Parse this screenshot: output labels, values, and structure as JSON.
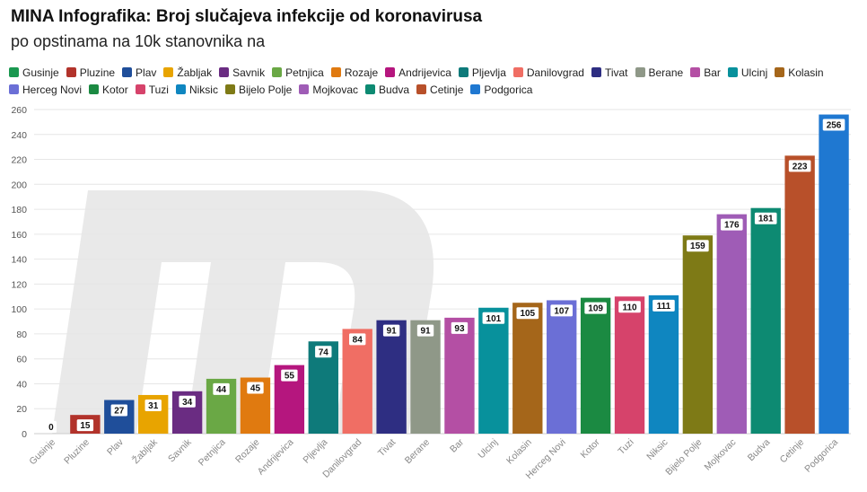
{
  "header": {
    "title": "MINA Infografika: Broj slučajeva infekcije od koronavirusa",
    "subtitle": "po opstinama na 10k stanovnika na"
  },
  "colors": {
    "grid": "#e6e6e6",
    "axis": "#cccccc",
    "watermark": "#e9e9e9"
  },
  "chart_data": {
    "type": "bar",
    "categories": [
      "Gusinje",
      "Pluzine",
      "Plav",
      "Žabljak",
      "Savnik",
      "Petnjica",
      "Rozaje",
      "Andrijevica",
      "Pljevlja",
      "Danilovgrad",
      "Tivat",
      "Berane",
      "Bar",
      "Ulcinj",
      "Kolasin",
      "Herceg Novi",
      "Kotor",
      "Tuzi",
      "Niksic",
      "Bijelo Polje",
      "Mojkovac",
      "Budva",
      "Cetinje",
      "Podgorica"
    ],
    "values": [
      0,
      15,
      27,
      31,
      34,
      44,
      45,
      55,
      74,
      84,
      91,
      91,
      93,
      101,
      105,
      107,
      109,
      110,
      111,
      159,
      176,
      181,
      223,
      256
    ],
    "colors": [
      "#1a9850",
      "#b2332b",
      "#1f4e9a",
      "#e8a400",
      "#6a2c82",
      "#6aa845",
      "#e07a10",
      "#b5167e",
      "#0e7a7a",
      "#f06e64",
      "#2e2e82",
      "#8f9888",
      "#b44fa4",
      "#08919c",
      "#a5661a",
      "#6b6fd6",
      "#1b8a42",
      "#d6436b",
      "#0f86c0",
      "#7e7a16",
      "#9f5cb6",
      "#0d8a72",
      "#b8502a",
      "#1f78d1"
    ],
    "ylim": [
      0,
      260
    ],
    "yticks": [
      0,
      20,
      40,
      60,
      80,
      100,
      120,
      140,
      160,
      180,
      200,
      220,
      240,
      260
    ],
    "legend": [
      "Gusinje",
      "Pluzine",
      "Plav",
      "Žabljak",
      "Savnik",
      "Petnjica",
      "Rozaje",
      "Andrijevica",
      "Pljevlja",
      "Danilovgrad",
      "Tivat",
      "Berane",
      "Bar",
      "Ulcinj",
      "Kolasin",
      "Herceg Novi",
      "Kotor",
      "Tuzi",
      "Niksic",
      "Bijelo Polje",
      "Mojkovac",
      "Budva",
      "Cetinje",
      "Podgorica"
    ],
    "legend_position": "top",
    "grid": true,
    "watermark": "m-logo"
  }
}
